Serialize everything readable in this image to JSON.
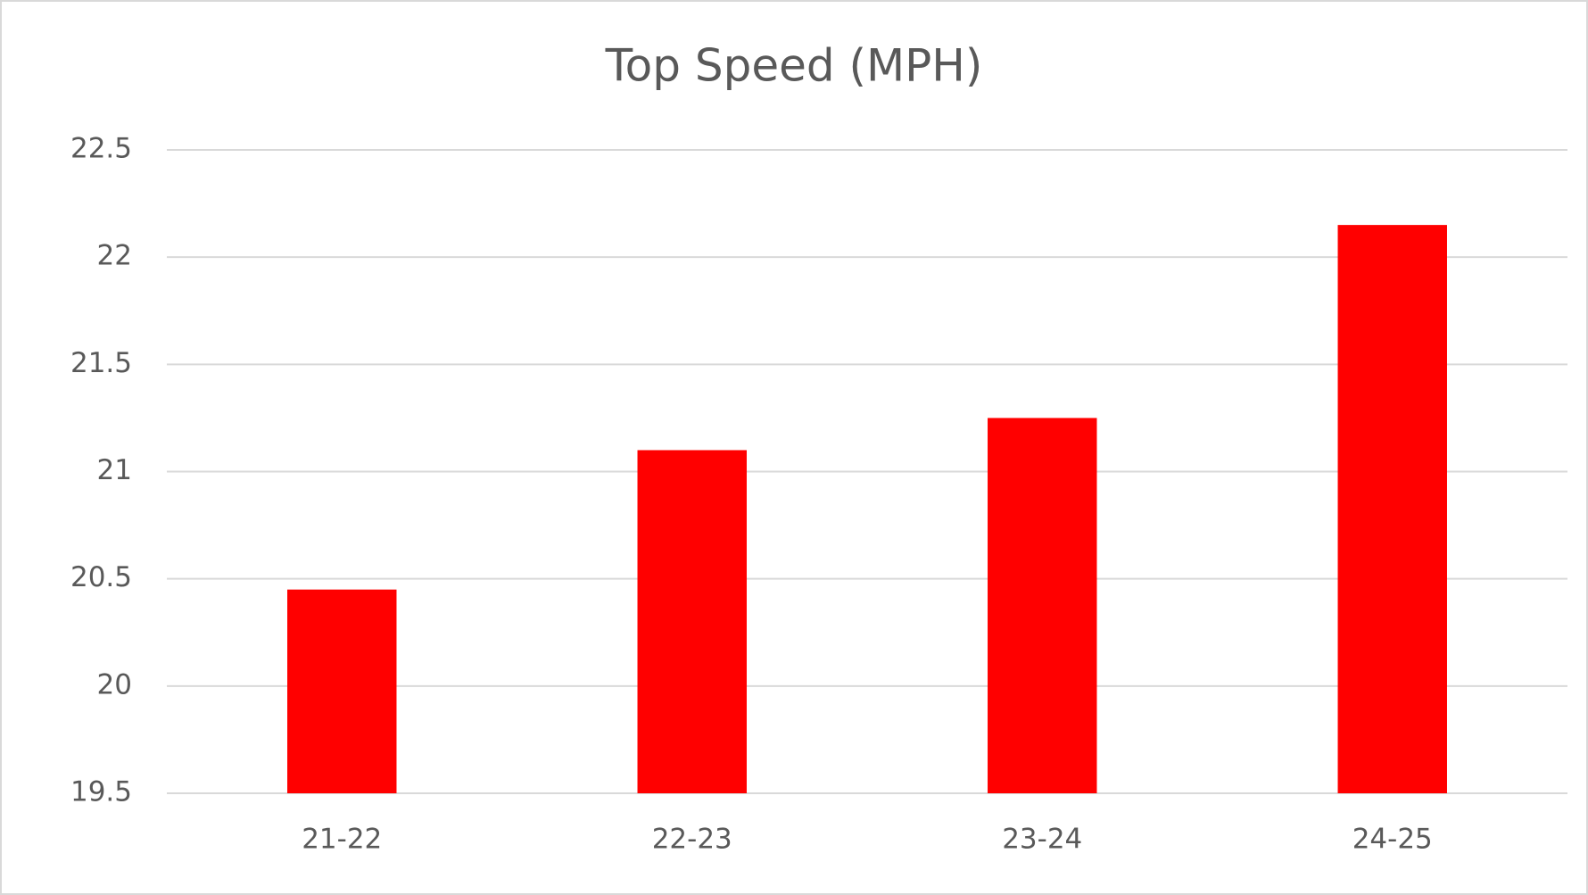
{
  "chart_data": {
    "type": "bar",
    "title": "Top Speed (MPH)",
    "categories": [
      "21-22",
      "22-23",
      "23-24",
      "24-25"
    ],
    "values": [
      20.45,
      21.1,
      21.25,
      22.15
    ],
    "color": "#ff0000",
    "ylim": [
      19.5,
      22.5
    ],
    "yticks": [
      19.5,
      20,
      20.5,
      21,
      21.5,
      22,
      22.5
    ],
    "grid": true
  }
}
